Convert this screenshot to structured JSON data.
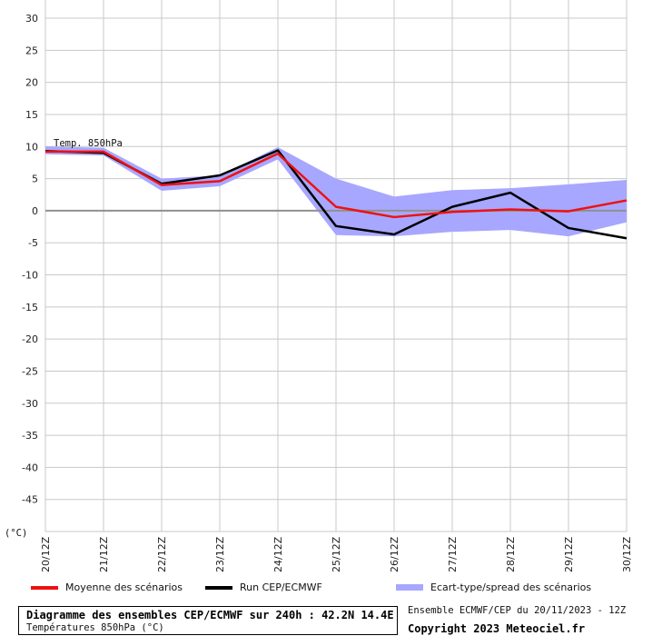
{
  "chart_data": {
    "type": "line",
    "title": "Diagramme des ensembles CEP/ECMWF sur 240h : 42.2N 14.4E",
    "subtitle": "Températures 850hPa (°C)",
    "ylabel": "(°C)",
    "annotation": "Temp. 850hPa",
    "categories": [
      "20/12Z",
      "21/12Z",
      "22/12Z",
      "23/12Z",
      "24/12Z",
      "25/12Z",
      "26/12Z",
      "27/12Z",
      "28/12Z",
      "29/12Z",
      "30/12Z"
    ],
    "yticks": [
      30,
      25,
      20,
      15,
      10,
      5,
      0,
      -5,
      -10,
      -15,
      -20,
      -25,
      -30,
      -35,
      -40,
      -45
    ],
    "ylim": [
      -50,
      30
    ],
    "grid": true,
    "colors": {
      "mean": "#ee1111",
      "run": "#000000",
      "spread": "#a7a7ff",
      "grid": "#c8c8c8",
      "zero": "#909090"
    },
    "series": [
      {
        "name": "Moyenne des scénarios",
        "values": [
          9.2,
          9.2,
          4.0,
          4.6,
          8.9,
          0.6,
          -1.0,
          -0.2,
          0.2,
          -0.1,
          1.6
        ]
      },
      {
        "name": "Run CEP/ECMWF",
        "values": [
          9.3,
          9.0,
          4.2,
          5.5,
          9.4,
          -2.4,
          -3.7,
          0.6,
          2.8,
          -2.7,
          -4.3
        ]
      }
    ],
    "spread": {
      "name": "Ecart-type/spread des scénarios",
      "upper": [
        10.0,
        9.8,
        5.0,
        5.5,
        9.9,
        5.0,
        2.2,
        3.2,
        3.5,
        4.1,
        4.8
      ],
      "lower": [
        8.8,
        8.6,
        3.1,
        3.8,
        8.0,
        -3.8,
        -4.0,
        -3.3,
        -3.0,
        -4.0,
        -1.8
      ]
    }
  },
  "legend": {
    "mean_label": "Moyenne des scénarios",
    "run_label": "Run CEP/ECMWF",
    "spread_label": "Ecart-type/spread des scénarios"
  },
  "infobox": {
    "title": "Diagramme des ensembles CEP/ECMWF sur 240h : 42.2N 14.4E",
    "subtitle": "Températures 850hPa (°C)"
  },
  "credits": {
    "ensemble": "Ensemble ECMWF/CEP du 20/11/2023 - 12Z",
    "copyright": "Copyright 2023 Meteociel.fr"
  }
}
